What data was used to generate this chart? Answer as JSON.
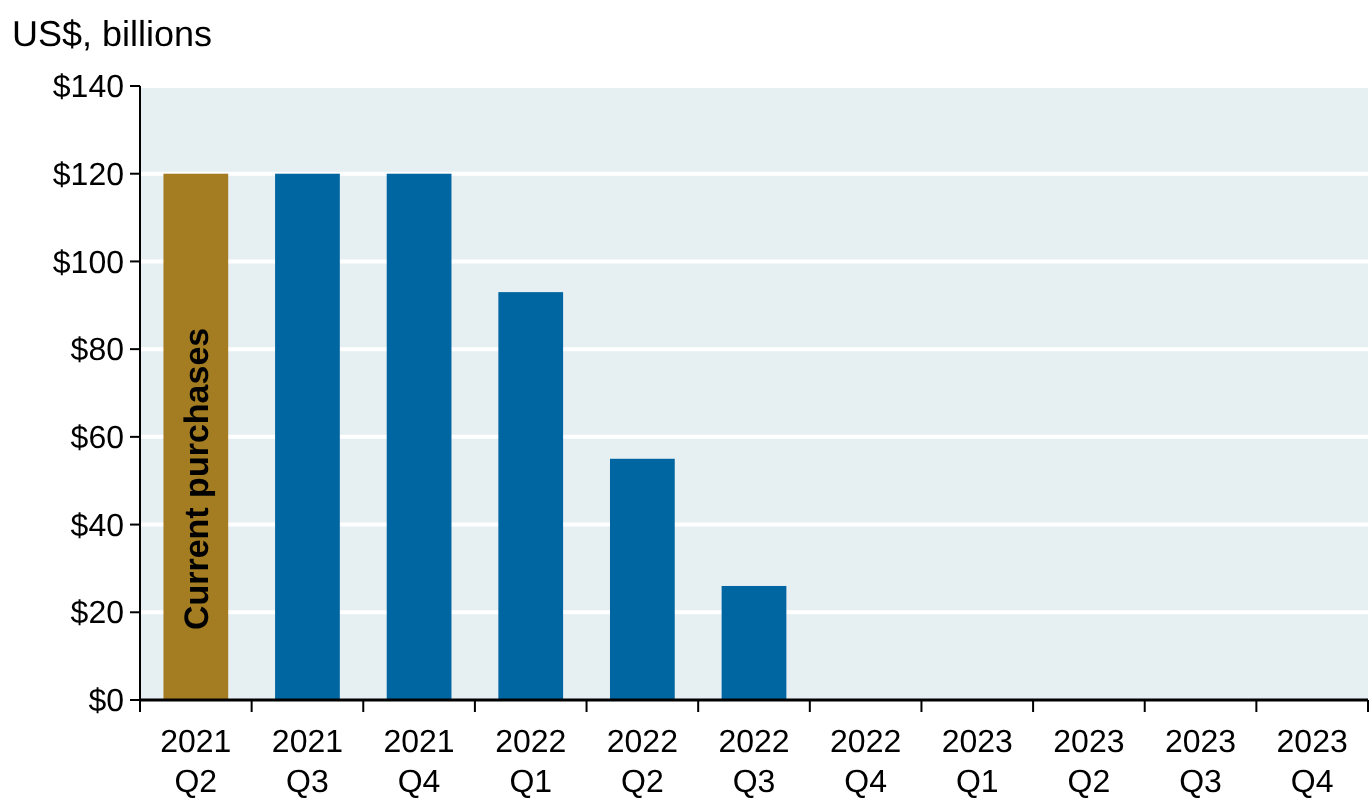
{
  "chart_data": {
    "type": "bar",
    "ylabel": "US$, billions",
    "categories": [
      "2021 Q2",
      "2021 Q3",
      "2021 Q4",
      "2022 Q1",
      "2022 Q2",
      "2022 Q3",
      "2022 Q4",
      "2023 Q1",
      "2023 Q2",
      "2023 Q3",
      "2023 Q4"
    ],
    "values": [
      120,
      120,
      120,
      93,
      55,
      26,
      0,
      0,
      0,
      0,
      0
    ],
    "colors": [
      "#a47d22",
      "#0066a1",
      "#0066a1",
      "#0066a1",
      "#0066a1",
      "#0066a1",
      "#0066a1",
      "#0066a1",
      "#0066a1",
      "#0066a1",
      "#0066a1"
    ],
    "ylim": [
      0,
      140
    ],
    "yticks": [
      {
        "value": 0,
        "label": "$0"
      },
      {
        "value": 20,
        "label": "$20"
      },
      {
        "value": 40,
        "label": "$40"
      },
      {
        "value": 60,
        "label": "$60"
      },
      {
        "value": 80,
        "label": "$80"
      },
      {
        "value": 100,
        "label": "$100"
      },
      {
        "value": 120,
        "label": "$120"
      },
      {
        "value": 140,
        "label": "$140"
      }
    ],
    "grid": "y",
    "annotations": [
      "Current purchases"
    ]
  }
}
